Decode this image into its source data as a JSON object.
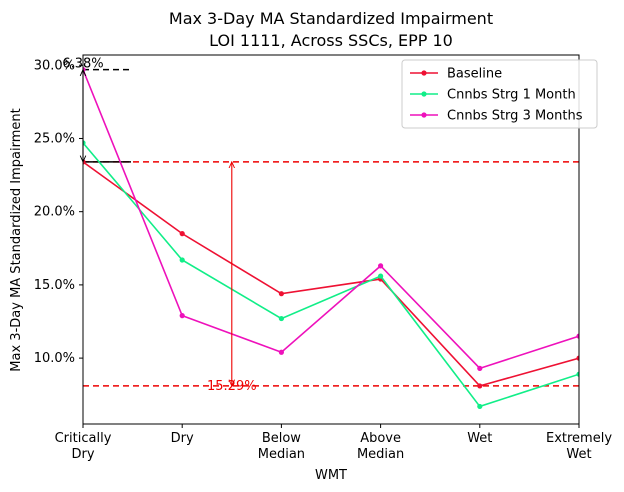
{
  "chart_data": {
    "type": "line",
    "title": "Max 3-Day MA Standardized Impairment",
    "subtitle": "LOI 1111, Across SSCs, EPP 10",
    "xlabel": "WMT",
    "ylabel": "Max 3-Day MA Standardized Impairment",
    "categories": [
      [
        "Critically",
        "Dry"
      ],
      [
        "Dry"
      ],
      [
        "Below",
        "Median"
      ],
      [
        "Above",
        "Median"
      ],
      [
        "Wet"
      ],
      [
        "Extremely",
        "Wet"
      ]
    ],
    "ylim": [
      5.5,
      30.7
    ],
    "yticks": [
      10,
      15,
      20,
      25,
      30
    ],
    "ytick_labels": [
      "10.0%",
      "15.0%",
      "20.0%",
      "25.0%",
      "30.0%"
    ],
    "grid": false,
    "legend_position": "top-right",
    "series": [
      {
        "name": "Baseline",
        "color": "#ee1133",
        "values": [
          23.4,
          18.5,
          14.4,
          15.4,
          8.1,
          10.0
        ]
      },
      {
        "name": "Cnnbs Strg 1 Month",
        "color": "#11ee88",
        "values": [
          24.7,
          16.7,
          12.7,
          15.6,
          6.7,
          8.9
        ]
      },
      {
        "name": "Cnnbs Strg 3 Months",
        "color": "#ee11bb",
        "values": [
          29.7,
          12.9,
          10.4,
          16.3,
          9.3,
          11.5
        ]
      }
    ],
    "annotations": {
      "hlines": [
        {
          "y": 23.4,
          "color": "#ee0000",
          "style": "dashed"
        },
        {
          "y": 8.1,
          "color": "#ee0000",
          "style": "dashed"
        }
      ],
      "range_arrow": {
        "x_category": 1.5,
        "y_from": 8.1,
        "y_to": 23.4,
        "label": "15.29%",
        "color": "#ee0000"
      },
      "top_arrow": {
        "x_category": 0,
        "y_from": 23.4,
        "y_to": 29.7,
        "label": "6.38%",
        "color": "#000000"
      }
    }
  }
}
